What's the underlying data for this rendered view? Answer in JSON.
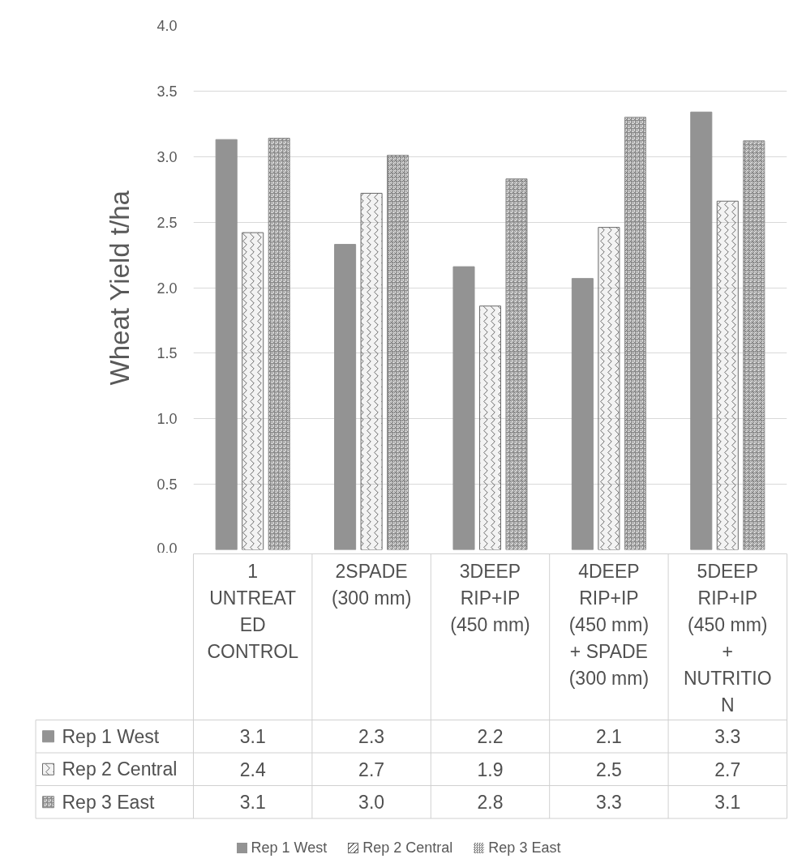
{
  "chart_data": {
    "type": "bar",
    "ylabel": "Wheat Yield t/ha",
    "categories": [
      "1 UNTREATED CONTROL",
      "2SPADE (300 mm)",
      "3DEEP RIP+IP (450 mm)",
      "4DEEP RIP+IP (450 mm) + SPADE (300 mm)",
      "5DEEP RIP+IP (450 mm) + NUTRITION"
    ],
    "series": [
      {
        "name": "Rep 1 West",
        "color": "#939393",
        "values": [
          3.13,
          2.33,
          2.16,
          2.07,
          3.34
        ],
        "value_labels": [
          "3.1",
          "2.3",
          "2.2",
          "2.1",
          "3.3"
        ]
      },
      {
        "name": "Rep 2 Central",
        "color": "#6a6a6a",
        "values": [
          2.42,
          2.72,
          1.86,
          2.46,
          2.66
        ],
        "value_labels": [
          "2.4",
          "2.7",
          "1.9",
          "2.5",
          "2.7"
        ]
      },
      {
        "name": "Rep 3 East",
        "color": "#8a8a8a",
        "values": [
          3.14,
          3.01,
          2.83,
          3.3,
          3.12
        ],
        "value_labels": [
          "3.1",
          "3.0",
          "2.8",
          "3.3",
          "3.1"
        ]
      }
    ],
    "ylim": [
      0,
      4
    ],
    "yticks": [
      {
        "value": 0,
        "label": "0.0"
      },
      0.5,
      {
        "value": 1,
        "label": "1.0"
      },
      1.5,
      {
        "value": 2,
        "label": "2.0"
      },
      2.5,
      {
        "value": 3,
        "label": "3.0"
      },
      3.5,
      {
        "value": 4,
        "label": "4.0"
      }
    ],
    "grid": "y",
    "legend": "bottom"
  }
}
